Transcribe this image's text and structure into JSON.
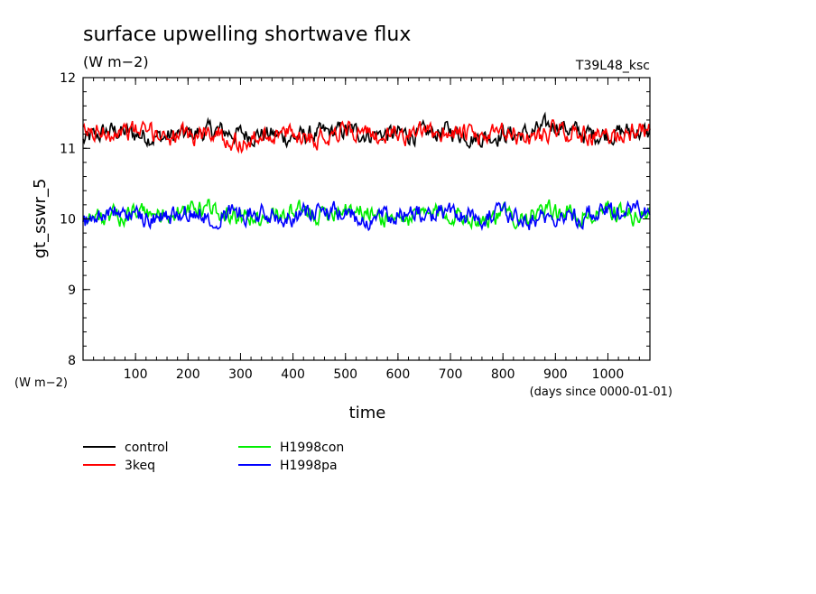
{
  "chart_data": {
    "type": "line",
    "title": "surface upwelling shortwave flux",
    "subtitle": "(W m−2)",
    "run_label": "T39L48_ksc",
    "xlabel": "time",
    "x_units": "(days since 0000-01-01)",
    "ylabel": "gt_sswr_5",
    "y_units": "(W m−2)",
    "xlim": [
      0,
      1080
    ],
    "ylim": [
      8,
      12
    ],
    "x_ticks": [
      100,
      200,
      300,
      400,
      500,
      600,
      700,
      800,
      900,
      1000
    ],
    "y_ticks": [
      8,
      9,
      10,
      11,
      12
    ],
    "grid": false,
    "legend_position": "bottom-left",
    "series": [
      {
        "name": "control",
        "color": "#000000",
        "x": [
          0,
          50,
          100,
          150,
          200,
          250,
          300,
          350,
          400,
          450,
          500,
          550,
          600,
          650,
          700,
          750,
          800,
          850,
          900,
          950,
          1000,
          1050,
          1080
        ],
        "y": [
          11.1,
          11.25,
          11.2,
          11.15,
          11.2,
          11.25,
          11.2,
          11.2,
          11.15,
          11.2,
          11.25,
          11.2,
          11.2,
          11.2,
          11.25,
          11.15,
          11.2,
          11.2,
          11.35,
          11.2,
          11.2,
          11.25,
          11.2
        ]
      },
      {
        "name": "3keq",
        "color": "#ff0000",
        "x": [
          0,
          50,
          100,
          150,
          200,
          250,
          300,
          350,
          400,
          450,
          500,
          550,
          600,
          650,
          700,
          750,
          800,
          850,
          900,
          950,
          1000,
          1050,
          1080
        ],
        "y": [
          11.2,
          11.25,
          11.25,
          11.2,
          11.15,
          11.25,
          11.05,
          11.2,
          11.2,
          11.15,
          11.3,
          11.15,
          11.2,
          11.2,
          11.25,
          11.15,
          11.2,
          11.15,
          11.25,
          11.2,
          11.15,
          11.25,
          11.25
        ]
      },
      {
        "name": "H1998con",
        "color": "#00ee00",
        "x": [
          0,
          50,
          100,
          150,
          200,
          250,
          300,
          350,
          400,
          450,
          500,
          550,
          600,
          650,
          700,
          750,
          800,
          850,
          900,
          950,
          1000,
          1050,
          1080
        ],
        "y": [
          10.05,
          10.0,
          10.1,
          10.05,
          10.1,
          10.15,
          10.0,
          10.05,
          10.1,
          10.05,
          10.2,
          10.05,
          10.0,
          10.05,
          10.1,
          10.0,
          10.05,
          10.05,
          10.1,
          10.05,
          10.1,
          10.05,
          10.05
        ]
      },
      {
        "name": "H1998pa",
        "color": "#0000ff",
        "x": [
          0,
          50,
          100,
          150,
          200,
          250,
          300,
          350,
          400,
          450,
          500,
          550,
          600,
          650,
          700,
          750,
          800,
          850,
          900,
          950,
          1000,
          1050,
          1080
        ],
        "y": [
          9.95,
          10.1,
          10.05,
          10.0,
          10.1,
          10.05,
          10.1,
          10.05,
          10.05,
          10.1,
          10.05,
          10.0,
          10.1,
          10.05,
          10.1,
          10.05,
          10.05,
          10.0,
          10.05,
          10.05,
          10.1,
          10.15,
          10.05
        ]
      }
    ]
  }
}
